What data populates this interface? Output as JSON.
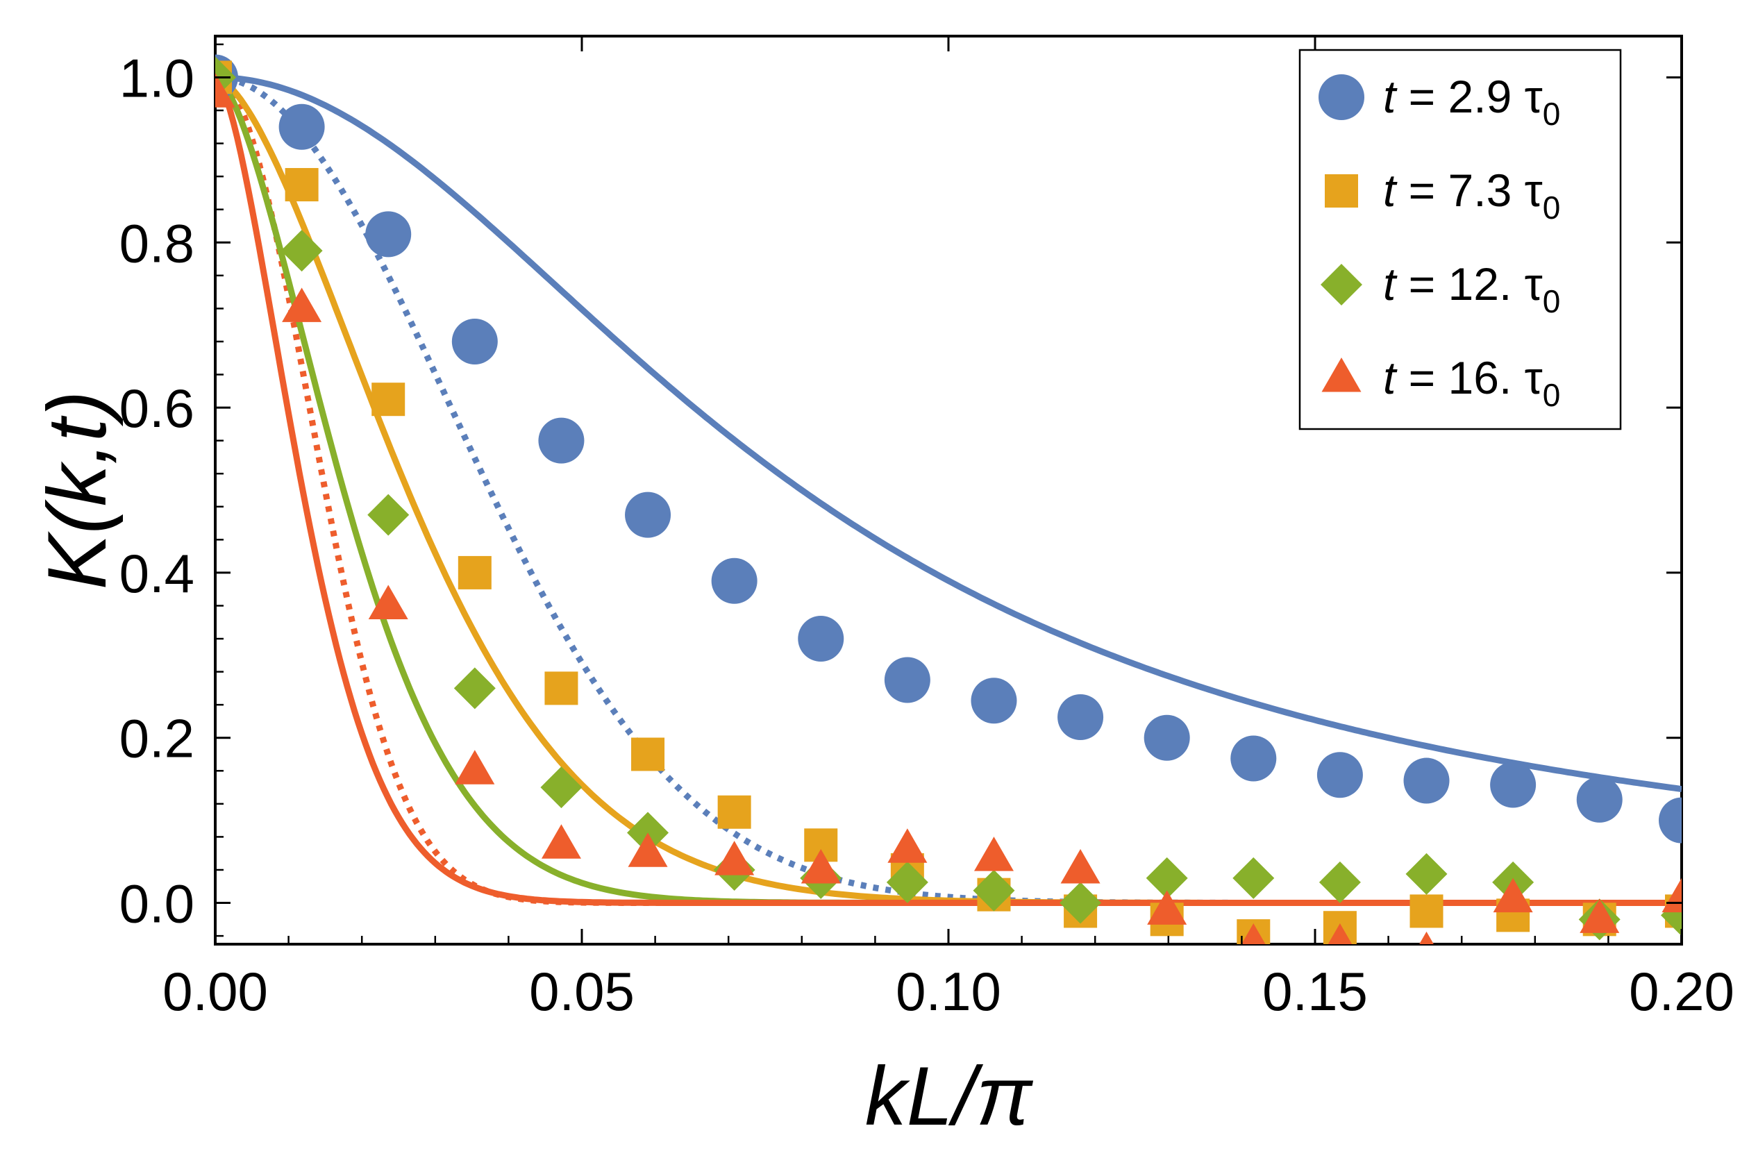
{
  "chart_data": {
    "type": "scatter",
    "title": "",
    "xlabel": "kL/π",
    "ylabel": "K(k,t)",
    "xlim": [
      0,
      0.2
    ],
    "ylim": [
      -0.05,
      1.05
    ],
    "x_ticks": [
      "0.00",
      "0.05",
      "0.10",
      "0.15",
      "0.20"
    ],
    "y_ticks": [
      "0.0",
      "0.2",
      "0.4",
      "0.6",
      "0.8",
      "1.0"
    ],
    "grid": false,
    "legend_position": "top-right",
    "colors": {
      "blue": "#5b7fba",
      "orange": "#e6a31d",
      "green": "#88b02b",
      "red": "#ee5d2c"
    },
    "series": [
      {
        "name": "t = 2.9 τ0",
        "legend": {
          "t": "t",
          "eq": " = 2.9 ",
          "tau": "τ",
          "sub": "0"
        },
        "marker": "circle",
        "color": "#5b7fba",
        "x": [
          0.0,
          0.0118,
          0.0236,
          0.0354,
          0.0472,
          0.059,
          0.0708,
          0.0826,
          0.0944,
          0.1062,
          0.118,
          0.1298,
          0.1416,
          0.1534,
          0.1652,
          0.177,
          0.1888,
          0.2
        ],
        "y": [
          1.0,
          0.94,
          0.81,
          0.68,
          0.56,
          0.47,
          0.39,
          0.32,
          0.27,
          0.245,
          0.225,
          0.2,
          0.175,
          0.155,
          0.148,
          0.143,
          0.125,
          0.1
        ],
        "fit_solid": "lorentzian",
        "fit_solid_param": 0.08,
        "fit_dotted_param": 0.045
      },
      {
        "name": "t = 7.3 τ0",
        "legend": {
          "t": "t",
          "eq": " = 7.3 ",
          "tau": "τ",
          "sub": "0"
        },
        "marker": "square",
        "color": "#e6a31d",
        "x": [
          0.0,
          0.0118,
          0.0236,
          0.0354,
          0.0472,
          0.059,
          0.0708,
          0.0826,
          0.0944,
          0.1062,
          0.118,
          0.1298,
          0.1416,
          0.1534,
          0.1652,
          0.177,
          0.1888,
          0.2
        ],
        "y": [
          1.0,
          0.87,
          0.61,
          0.4,
          0.26,
          0.18,
          0.11,
          0.07,
          0.04,
          0.01,
          -0.01,
          -0.02,
          -0.04,
          -0.03,
          -0.01,
          -0.015,
          -0.02,
          -0.01
        ],
        "fit_solid_param": 0.033
      },
      {
        "name": "t = 12. τ0",
        "legend": {
          "t": "t",
          "eq": " = 12. ",
          "tau": "τ",
          "sub": "0"
        },
        "marker": "diamond",
        "color": "#88b02b",
        "x": [
          0.0,
          0.0118,
          0.0236,
          0.0354,
          0.0472,
          0.059,
          0.0708,
          0.0826,
          0.0944,
          0.1062,
          0.118,
          0.1298,
          0.1416,
          0.1534,
          0.1652,
          0.177,
          0.1888,
          0.2
        ],
        "y": [
          1.0,
          0.79,
          0.47,
          0.26,
          0.14,
          0.085,
          0.04,
          0.03,
          0.025,
          0.015,
          0.0,
          0.03,
          0.03,
          0.025,
          0.035,
          0.025,
          -0.02,
          -0.015
        ],
        "fit_solid_param": 0.022
      },
      {
        "name": "t = 16. τ0",
        "legend": {
          "t": "t",
          "eq": " = 16. ",
          "tau": "τ",
          "sub": "0"
        },
        "marker": "triangle",
        "color": "#ee5d2c",
        "x": [
          0.0,
          0.0118,
          0.0236,
          0.0354,
          0.0472,
          0.059,
          0.0708,
          0.0826,
          0.0944,
          0.1062,
          0.118,
          0.1298,
          0.1416,
          0.1534,
          0.1652,
          0.177,
          0.1888,
          0.2
        ],
        "y": [
          0.98,
          0.72,
          0.36,
          0.16,
          0.07,
          0.06,
          0.05,
          0.04,
          0.065,
          0.055,
          0.04,
          -0.01,
          -0.05,
          -0.05,
          -0.06,
          0.005,
          -0.02,
          0.005
        ],
        "fit_solid_param": 0.015,
        "fit_dotted_param": 0.018
      }
    ]
  }
}
